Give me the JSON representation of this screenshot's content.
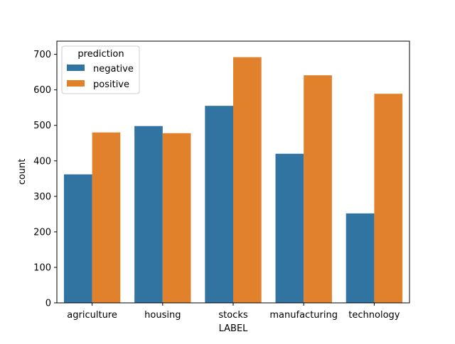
{
  "chart_data": {
    "type": "bar",
    "xlabel": "LABEL",
    "ylabel": "count",
    "categories": [
      "agriculture",
      "housing",
      "stocks",
      "manufacturing",
      "technology"
    ],
    "series": [
      {
        "name": "negative",
        "color": "#3274a1",
        "values": [
          362,
          498,
          555,
          420,
          252
        ]
      },
      {
        "name": "positive",
        "color": "#e1812c",
        "values": [
          480,
          478,
          692,
          641,
          589
        ]
      }
    ],
    "ylim": [
      0,
      700
    ],
    "yticks": [
      0,
      100,
      200,
      300,
      400,
      500,
      600,
      700
    ],
    "grid": false,
    "legend": {
      "title": "prediction",
      "placement": "top-left"
    }
  }
}
